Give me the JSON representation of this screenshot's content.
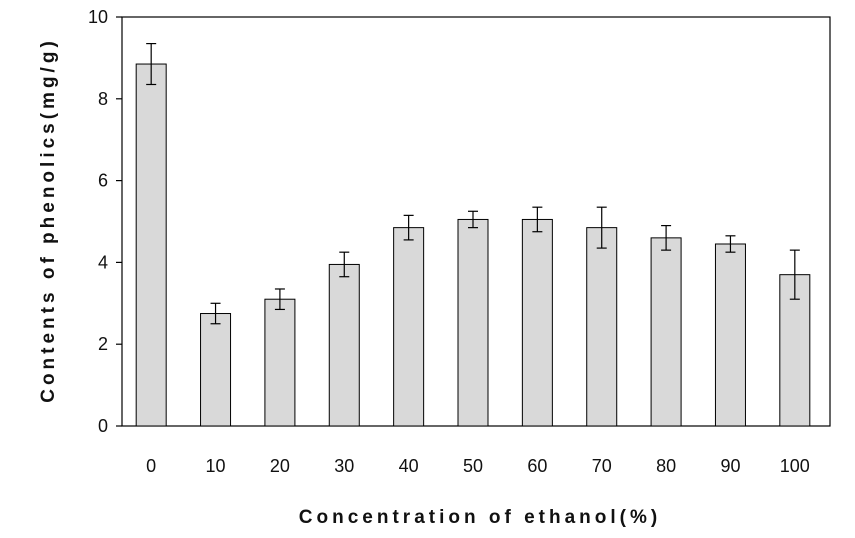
{
  "chart_data": {
    "type": "bar",
    "title": "",
    "xlabel": "Concentration of ethanol(%)",
    "ylabel": "Contents of phenolics(mg/g)",
    "categories": [
      "0",
      "10",
      "20",
      "30",
      "40",
      "50",
      "60",
      "70",
      "80",
      "90",
      "100"
    ],
    "values": [
      8.85,
      2.75,
      3.1,
      3.95,
      4.85,
      5.05,
      5.05,
      4.85,
      4.6,
      4.45,
      3.7
    ],
    "errors": [
      0.5,
      0.25,
      0.25,
      0.3,
      0.3,
      0.2,
      0.3,
      0.5,
      0.3,
      0.2,
      0.6
    ],
    "ylim": [
      0,
      10
    ],
    "yticks": [
      0,
      2,
      4,
      6,
      8,
      10
    ],
    "grid": false,
    "legend": false,
    "colors": {
      "bar_fill": "#d9d9d9",
      "bar_stroke": "#000000",
      "axis": "#000000"
    }
  }
}
